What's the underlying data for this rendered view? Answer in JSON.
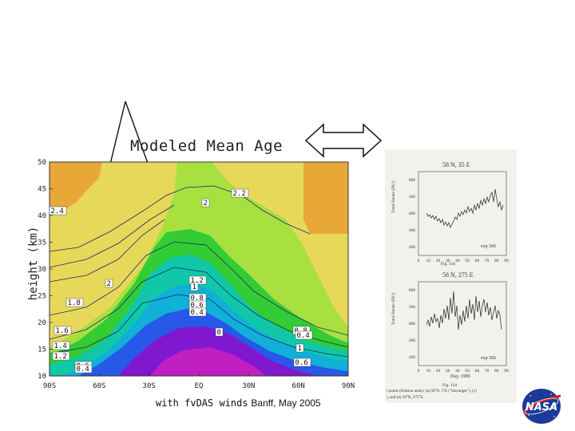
{
  "contour_plot": {
    "title": "Modeled Mean Age",
    "y_axis_title": "height (km)",
    "y_ticks": [
      "50",
      "45",
      "40",
      "35",
      "30",
      "25",
      "20",
      "15",
      "10"
    ],
    "x_ticks": [
      "90S",
      "60S",
      "30S",
      "EQ",
      "30N",
      "60N",
      "90N"
    ],
    "contour_labels": [
      "2.4",
      "2.2",
      "2",
      "2",
      "1.8",
      "1.6",
      "1.4",
      "1.2",
      "0.6",
      "0.4",
      "1.2",
      "1",
      "0.8",
      "0.6",
      "0.4",
      "0",
      "0.8",
      "0.4",
      "1",
      "0.6"
    ],
    "colors": {
      "orange": "#e8a838",
      "yellow": "#e8d85a",
      "light_green": "#a8e040",
      "green": "#34cc34",
      "teal": "#10c8a8",
      "cyan": "#10b0d8",
      "blue": "#2858e8",
      "purple": "#8018d0",
      "magenta": "#c020c0"
    }
  },
  "caption": {
    "mono_text": "with fvDAS winds",
    "place_text": "Banff, May 2005"
  },
  "right_panel": {
    "top_chart": {
      "title": "58 N, 35 E",
      "y_label": "Total Ozone (DU)",
      "y_ticks": [
        "600",
        "500",
        "400",
        "300",
        "200"
      ],
      "x_ticks": [
        "0",
        "10",
        "20",
        "30",
        "40",
        "50",
        "60",
        "70",
        "80",
        "90"
      ],
      "annotation": "exp 366",
      "figure_label": "Fig. 11b"
    },
    "bottom_chart": {
      "title": "58 N, 275 E",
      "y_label": "Total Ozone (DU)",
      "y_ticks": [
        "600",
        "500",
        "400",
        "300",
        "200"
      ],
      "x_ticks": [
        "0",
        "10",
        "20",
        "30",
        "40",
        "50",
        "60",
        "70",
        "80",
        "90"
      ],
      "x_label": "Day, 1989",
      "annotation": "exp 366",
      "figure_label": "Fig. 11d",
      "caption_lines": [
        "l points (Dobson units): (a) 58°N, 5°E (\"Stavanger\"), (c)",
        "), and (d) 58°N, 275°E."
      ]
    }
  },
  "logo": {
    "name": "NASA",
    "text": "NASA"
  }
}
